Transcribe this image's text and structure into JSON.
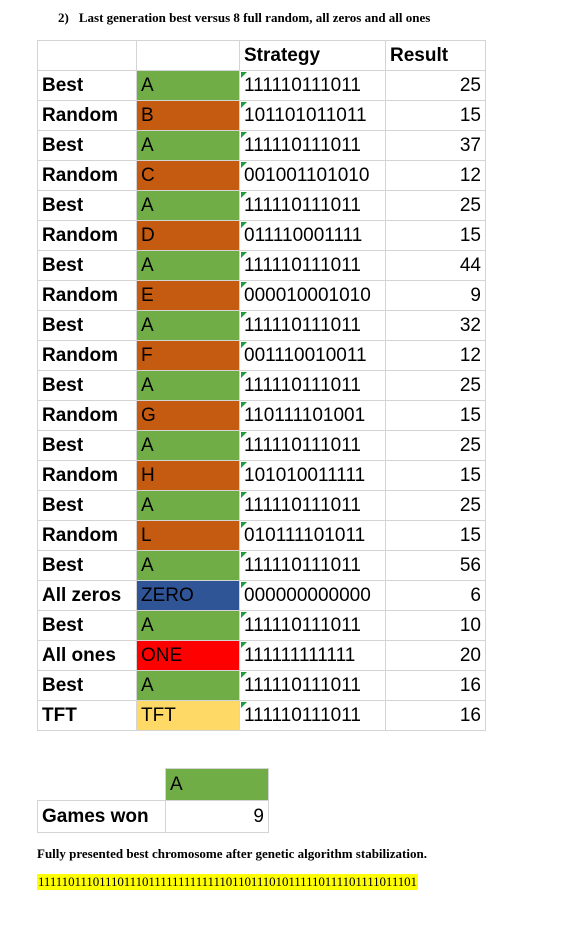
{
  "heading": {
    "number": "2)",
    "text": "Last generation best versus 8 full random, all zeros and all ones"
  },
  "table": {
    "headers": {
      "strategy": "Strategy",
      "result": "Result"
    },
    "rows": [
      {
        "type": "Best",
        "label": "A",
        "strategy": "111110111011",
        "result": "25",
        "color": "#70ad47"
      },
      {
        "type": "Random",
        "label": "B",
        "strategy": "101101011011",
        "result": "15",
        "color": "#c55a11"
      },
      {
        "type": "Best",
        "label": "A",
        "strategy": "111110111011",
        "result": "37",
        "color": "#70ad47"
      },
      {
        "type": "Random",
        "label": "C",
        "strategy": "001001101010",
        "result": "12",
        "color": "#c55a11"
      },
      {
        "type": "Best",
        "label": "A",
        "strategy": "111110111011",
        "result": "25",
        "color": "#70ad47"
      },
      {
        "type": "Random",
        "label": "D",
        "strategy": "011110001111",
        "result": "15",
        "color": "#c55a11"
      },
      {
        "type": "Best",
        "label": "A",
        "strategy": "111110111011",
        "result": "44",
        "color": "#70ad47"
      },
      {
        "type": "Random",
        "label": "E",
        "strategy": "000010001010",
        "result": "9",
        "color": "#c55a11"
      },
      {
        "type": "Best",
        "label": "A",
        "strategy": "111110111011",
        "result": "32",
        "color": "#70ad47"
      },
      {
        "type": "Random",
        "label": "F",
        "strategy": "001110010011",
        "result": "12",
        "color": "#c55a11"
      },
      {
        "type": "Best",
        "label": "A",
        "strategy": "111110111011",
        "result": "25",
        "color": "#70ad47"
      },
      {
        "type": "Random",
        "label": "G",
        "strategy": "110111101001",
        "result": "15",
        "color": "#c55a11"
      },
      {
        "type": "Best",
        "label": "A",
        "strategy": "111110111011",
        "result": "25",
        "color": "#70ad47"
      },
      {
        "type": "Random",
        "label": "H",
        "strategy": "101010011111",
        "result": "15",
        "color": "#c55a11"
      },
      {
        "type": "Best",
        "label": "A",
        "strategy": "111110111011",
        "result": "25",
        "color": "#70ad47"
      },
      {
        "type": "Random",
        "label": "L",
        "strategy": "010111101011",
        "result": "15",
        "color": "#c55a11"
      },
      {
        "type": "Best",
        "label": "A",
        "strategy": "111110111011",
        "result": "56",
        "color": "#70ad47"
      },
      {
        "type": "All zeros",
        "label": "ZERO",
        "strategy": "000000000000",
        "result": "6",
        "color": "#2f5597"
      },
      {
        "type": "Best",
        "label": "A",
        "strategy": "111110111011",
        "result": "10",
        "color": "#70ad47"
      },
      {
        "type": "All ones",
        "label": "ONE",
        "strategy": "111111111111",
        "result": "20",
        "color": "#ff0000"
      },
      {
        "type": "Best",
        "label": "A",
        "strategy": "111110111011",
        "result": "16",
        "color": "#70ad47"
      },
      {
        "type": "TFT",
        "label": "TFT",
        "strategy": "111110111011",
        "result": "16",
        "color": "#ffd966"
      }
    ]
  },
  "games_won": {
    "label": "Games won",
    "column": "A",
    "value": "9",
    "color": "#70ad47"
  },
  "note": "Fully presented best chromosome after genetic algorithm stabilization.",
  "chromosome": "11111011101110111011111111111110110111010111110111101111011101"
}
